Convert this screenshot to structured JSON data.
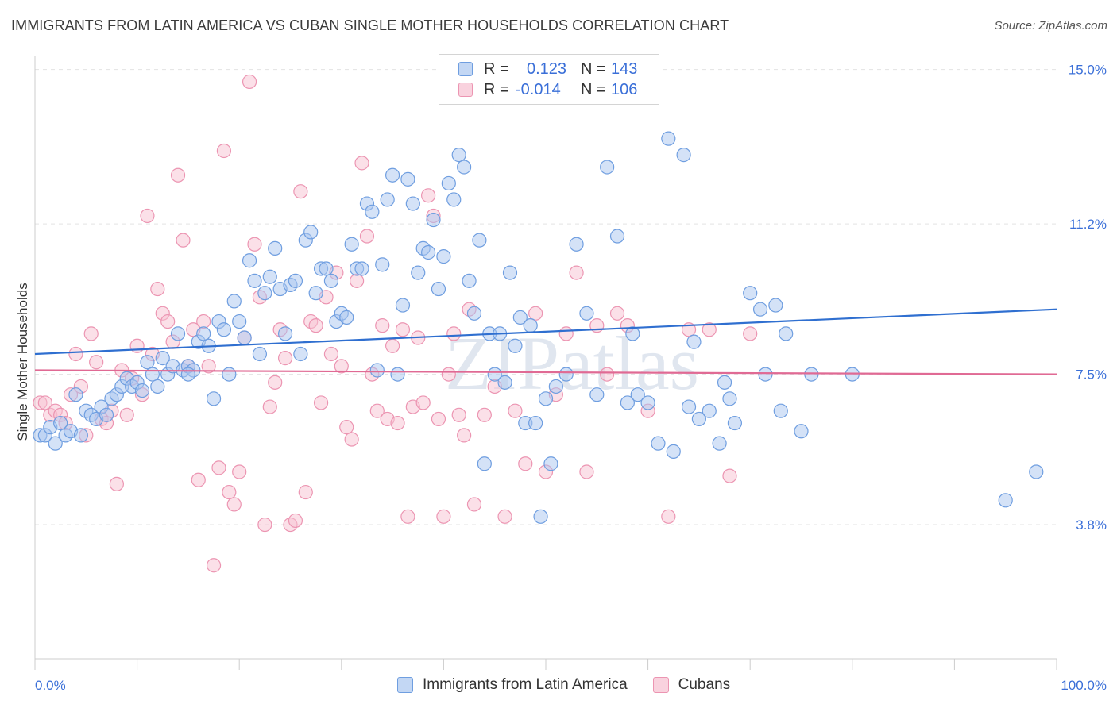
{
  "header": {
    "title": "IMMIGRANTS FROM LATIN AMERICA VS CUBAN SINGLE MOTHER HOUSEHOLDS CORRELATION CHART",
    "source": "Source: ZipAtlas.com"
  },
  "watermark": "ZIPatlas",
  "legend": {
    "r_label": "R =",
    "n_label": "N =",
    "rows": [
      {
        "name": "Immigrants from Latin America",
        "r": "0.123",
        "n": "143",
        "color": "#7ea8e8"
      },
      {
        "name": "Cubans",
        "r": "-0.014",
        "n": "106",
        "color": "#f0a0b8"
      }
    ]
  },
  "colors": {
    "blue_fill": "#a9c6f0",
    "blue_stroke": "#6f9ee0",
    "blue_line": "#2f6fd0",
    "pink_fill": "#f7c1d1",
    "pink_stroke": "#ec95b2",
    "pink_line": "#e06a94",
    "axis_label": "#3a6fd8",
    "grid": "#e3e3e3"
  },
  "chart_data": {
    "type": "scatter",
    "title": "IMMIGRANTS FROM LATIN AMERICA VS CUBAN SINGLE MOTHER HOUSEHOLDS CORRELATION CHART",
    "xlabel": "",
    "ylabel": "Single Mother Households",
    "x_tick_labels": [
      "0.0%",
      "100.0%"
    ],
    "y_tick_labels": [
      "3.8%",
      "7.5%",
      "11.2%",
      "15.0%"
    ],
    "y_ticks": [
      3.8,
      7.5,
      11.2,
      15.0
    ],
    "xlim": [
      0,
      100
    ],
    "ylim": [
      0.5,
      15.5
    ],
    "series": [
      {
        "name": "Immigrants from Latin America",
        "trend": {
          "x0": 0,
          "y0": 8.0,
          "x1": 100,
          "y1": 9.1
        },
        "points": [
          [
            0.5,
            6.0
          ],
          [
            1.0,
            6.0
          ],
          [
            1.5,
            6.2
          ],
          [
            2.0,
            5.8
          ],
          [
            2.5,
            6.3
          ],
          [
            3.0,
            6.0
          ],
          [
            3.5,
            6.1
          ],
          [
            4.0,
            7.0
          ],
          [
            4.5,
            6.0
          ],
          [
            5.0,
            6.6
          ],
          [
            5.5,
            6.5
          ],
          [
            6.0,
            6.4
          ],
          [
            6.5,
            6.7
          ],
          [
            7.0,
            6.5
          ],
          [
            7.5,
            6.9
          ],
          [
            8.0,
            7.0
          ],
          [
            8.5,
            7.2
          ],
          [
            9.0,
            7.4
          ],
          [
            9.5,
            7.2
          ],
          [
            10.0,
            7.3
          ],
          [
            10.5,
            7.1
          ],
          [
            11.0,
            7.8
          ],
          [
            11.5,
            7.5
          ],
          [
            12.0,
            7.2
          ],
          [
            12.5,
            7.9
          ],
          [
            13.0,
            7.5
          ],
          [
            13.5,
            7.7
          ],
          [
            14.0,
            8.5
          ],
          [
            14.5,
            7.6
          ],
          [
            15.0,
            7.7
          ],
          [
            15.5,
            7.6
          ],
          [
            16.0,
            8.3
          ],
          [
            16.5,
            8.5
          ],
          [
            17.0,
            8.2
          ],
          [
            17.5,
            6.9
          ],
          [
            18.0,
            8.8
          ],
          [
            18.5,
            8.6
          ],
          [
            19.0,
            7.5
          ],
          [
            19.5,
            9.3
          ],
          [
            20.0,
            8.8
          ],
          [
            20.5,
            8.4
          ],
          [
            21.0,
            10.3
          ],
          [
            21.5,
            9.8
          ],
          [
            22.0,
            8.0
          ],
          [
            22.5,
            9.5
          ],
          [
            23.0,
            9.9
          ],
          [
            23.5,
            10.6
          ],
          [
            24.0,
            9.6
          ],
          [
            24.5,
            8.5
          ],
          [
            25.0,
            9.7
          ],
          [
            25.5,
            9.8
          ],
          [
            26.0,
            8.0
          ],
          [
            26.5,
            10.8
          ],
          [
            27.0,
            11.0
          ],
          [
            27.5,
            9.5
          ],
          [
            28.0,
            10.1
          ],
          [
            28.5,
            10.1
          ],
          [
            29.0,
            9.8
          ],
          [
            29.5,
            8.8
          ],
          [
            30.0,
            9.0
          ],
          [
            30.5,
            8.9
          ],
          [
            31.0,
            10.7
          ],
          [
            31.5,
            10.1
          ],
          [
            32.0,
            10.1
          ],
          [
            32.5,
            11.7
          ],
          [
            33.0,
            11.5
          ],
          [
            33.5,
            7.6
          ],
          [
            34.0,
            10.2
          ],
          [
            34.5,
            11.8
          ],
          [
            35.0,
            12.4
          ],
          [
            35.5,
            7.5
          ],
          [
            36.0,
            9.2
          ],
          [
            36.5,
            12.3
          ],
          [
            37.0,
            11.7
          ],
          [
            37.5,
            10.0
          ],
          [
            38.0,
            10.6
          ],
          [
            38.5,
            10.5
          ],
          [
            39.0,
            11.3
          ],
          [
            39.5,
            9.6
          ],
          [
            40.0,
            10.4
          ],
          [
            40.5,
            12.2
          ],
          [
            41.0,
            11.8
          ],
          [
            41.5,
            12.9
          ],
          [
            42.0,
            12.6
          ],
          [
            42.5,
            9.8
          ],
          [
            43.0,
            9.0
          ],
          [
            43.5,
            10.8
          ],
          [
            44.0,
            5.3
          ],
          [
            44.5,
            8.5
          ],
          [
            45.0,
            7.5
          ],
          [
            45.5,
            8.5
          ],
          [
            46.0,
            7.3
          ],
          [
            46.5,
            10.0
          ],
          [
            47.0,
            8.2
          ],
          [
            47.5,
            8.9
          ],
          [
            48.0,
            6.3
          ],
          [
            48.5,
            8.7
          ],
          [
            49.0,
            6.3
          ],
          [
            49.5,
            4.0
          ],
          [
            50.0,
            6.9
          ],
          [
            50.5,
            5.3
          ],
          [
            51.0,
            7.2
          ],
          [
            52.0,
            7.5
          ],
          [
            53.0,
            10.7
          ],
          [
            54.0,
            9.0
          ],
          [
            55.0,
            7.0
          ],
          [
            56.0,
            12.6
          ],
          [
            57.0,
            10.9
          ],
          [
            58.0,
            6.8
          ],
          [
            58.5,
            8.5
          ],
          [
            59.0,
            7.0
          ],
          [
            60.0,
            6.8
          ],
          [
            61.0,
            5.8
          ],
          [
            62.0,
            13.3
          ],
          [
            62.5,
            5.6
          ],
          [
            63.5,
            12.9
          ],
          [
            64.0,
            6.7
          ],
          [
            64.5,
            8.3
          ],
          [
            65.0,
            6.4
          ],
          [
            66.0,
            6.6
          ],
          [
            67.0,
            5.8
          ],
          [
            67.5,
            7.3
          ],
          [
            68.0,
            6.9
          ],
          [
            68.5,
            6.3
          ],
          [
            70.0,
            9.5
          ],
          [
            71.0,
            9.1
          ],
          [
            71.5,
            7.5
          ],
          [
            72.5,
            9.2
          ],
          [
            73.0,
            6.6
          ],
          [
            73.5,
            8.5
          ],
          [
            75.0,
            6.1
          ],
          [
            76.0,
            7.5
          ],
          [
            80.0,
            7.5
          ],
          [
            95.0,
            4.4
          ],
          [
            98.0,
            5.1
          ],
          [
            15.0,
            7.5
          ]
        ]
      },
      {
        "name": "Cubans",
        "trend": {
          "x0": 0,
          "y0": 7.6,
          "x1": 100,
          "y1": 7.5
        },
        "points": [
          [
            0.5,
            6.8
          ],
          [
            1.0,
            6.8
          ],
          [
            1.5,
            6.5
          ],
          [
            2.0,
            6.6
          ],
          [
            2.5,
            6.5
          ],
          [
            3.0,
            6.3
          ],
          [
            3.5,
            7.0
          ],
          [
            4.0,
            8.0
          ],
          [
            4.5,
            7.2
          ],
          [
            5.0,
            6.0
          ],
          [
            5.5,
            8.5
          ],
          [
            6.0,
            7.8
          ],
          [
            6.5,
            6.4
          ],
          [
            7.0,
            6.3
          ],
          [
            7.5,
            6.6
          ],
          [
            8.0,
            4.8
          ],
          [
            8.5,
            7.6
          ],
          [
            9.0,
            6.5
          ],
          [
            9.5,
            7.4
          ],
          [
            10.0,
            8.2
          ],
          [
            10.5,
            7.0
          ],
          [
            11.0,
            11.4
          ],
          [
            11.5,
            8.0
          ],
          [
            12.0,
            9.6
          ],
          [
            12.5,
            9.0
          ],
          [
            13.0,
            8.8
          ],
          [
            13.5,
            8.3
          ],
          [
            14.0,
            12.4
          ],
          [
            14.5,
            10.8
          ],
          [
            15.0,
            7.7
          ],
          [
            15.5,
            8.6
          ],
          [
            16.0,
            4.9
          ],
          [
            16.5,
            8.8
          ],
          [
            17.0,
            7.7
          ],
          [
            17.5,
            2.8
          ],
          [
            18.0,
            5.2
          ],
          [
            18.5,
            13.0
          ],
          [
            19.0,
            4.6
          ],
          [
            19.5,
            4.3
          ],
          [
            20.0,
            5.1
          ],
          [
            20.5,
            8.4
          ],
          [
            21.0,
            14.7
          ],
          [
            21.5,
            10.7
          ],
          [
            22.0,
            9.4
          ],
          [
            22.5,
            3.8
          ],
          [
            23.0,
            6.7
          ],
          [
            23.5,
            7.3
          ],
          [
            24.0,
            8.6
          ],
          [
            24.5,
            7.9
          ],
          [
            25.0,
            3.8
          ],
          [
            25.5,
            3.9
          ],
          [
            26.0,
            12.0
          ],
          [
            26.5,
            4.6
          ],
          [
            27.0,
            8.8
          ],
          [
            27.5,
            8.7
          ],
          [
            28.0,
            6.8
          ],
          [
            28.5,
            9.4
          ],
          [
            29.0,
            8.0
          ],
          [
            29.5,
            10.0
          ],
          [
            30.0,
            7.7
          ],
          [
            30.5,
            6.2
          ],
          [
            31.0,
            5.9
          ],
          [
            31.5,
            9.8
          ],
          [
            32.0,
            12.7
          ],
          [
            32.5,
            10.9
          ],
          [
            33.0,
            7.5
          ],
          [
            33.5,
            6.6
          ],
          [
            34.0,
            8.7
          ],
          [
            34.5,
            6.4
          ],
          [
            35.0,
            8.2
          ],
          [
            35.5,
            6.3
          ],
          [
            36.0,
            8.6
          ],
          [
            36.5,
            4.0
          ],
          [
            37.0,
            6.7
          ],
          [
            37.5,
            8.4
          ],
          [
            38.0,
            6.8
          ],
          [
            38.5,
            11.9
          ],
          [
            39.0,
            11.4
          ],
          [
            39.5,
            6.4
          ],
          [
            40.0,
            4.0
          ],
          [
            40.5,
            7.5
          ],
          [
            41.0,
            8.5
          ],
          [
            41.5,
            6.5
          ],
          [
            42.0,
            6.0
          ],
          [
            42.5,
            9.1
          ],
          [
            43.0,
            4.3
          ],
          [
            44.0,
            6.5
          ],
          [
            45.0,
            7.2
          ],
          [
            46.0,
            4.0
          ],
          [
            47.0,
            6.6
          ],
          [
            48.0,
            5.3
          ],
          [
            49.0,
            9.0
          ],
          [
            50.0,
            5.1
          ],
          [
            51.0,
            7.0
          ],
          [
            52.0,
            8.5
          ],
          [
            53.0,
            10.0
          ],
          [
            54.0,
            5.1
          ],
          [
            55.0,
            8.7
          ],
          [
            56.0,
            7.5
          ],
          [
            57.0,
            9.0
          ],
          [
            58.0,
            8.7
          ],
          [
            60.0,
            6.6
          ],
          [
            62.0,
            4.0
          ],
          [
            64.0,
            8.6
          ],
          [
            66.0,
            8.6
          ],
          [
            68.0,
            5.0
          ],
          [
            70.0,
            8.5
          ]
        ]
      }
    ]
  }
}
